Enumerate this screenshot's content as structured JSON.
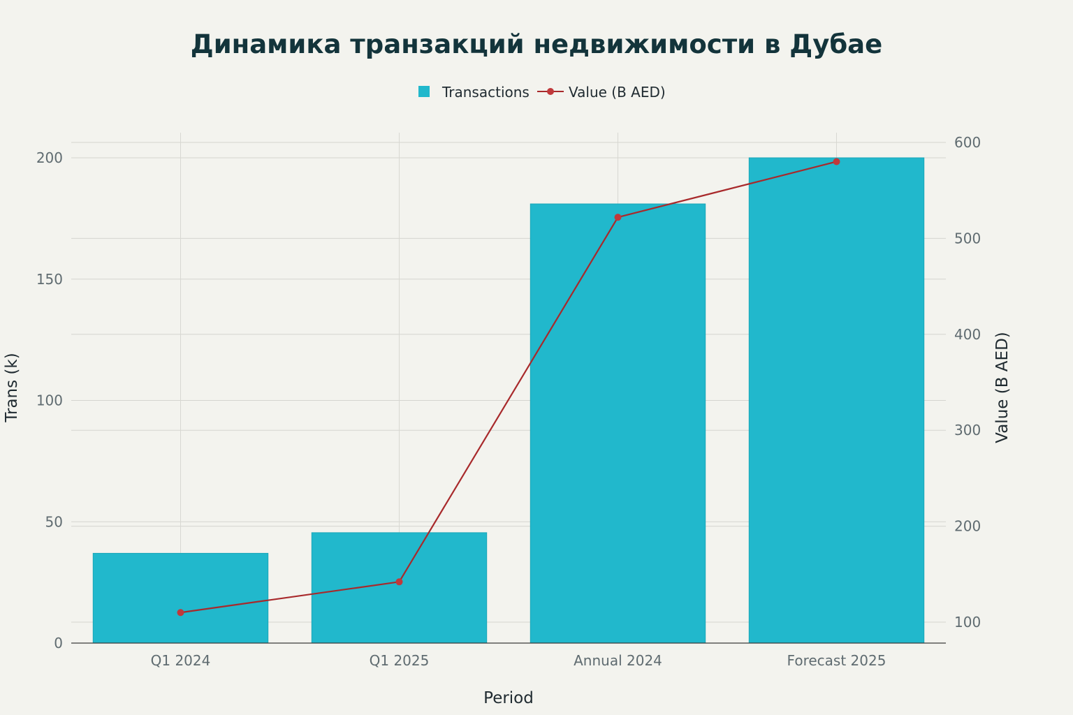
{
  "chart_data": {
    "type": "bar",
    "title": "Динамика транзакций недвижимости в Дубае",
    "xlabel": "Period",
    "ylabel": "Trans (k)",
    "y2label": "Value (B AED)",
    "categories": [
      "Q1 2024",
      "Q1 2025",
      "Annual 2024",
      "Forecast 2025"
    ],
    "ylim": [
      0,
      210
    ],
    "y2lim": [
      75,
      610
    ],
    "yticks": [
      0,
      50,
      100,
      150,
      200
    ],
    "y2ticks": [
      100,
      200,
      300,
      400,
      500,
      600
    ],
    "grid": true,
    "legend_position": "top-center",
    "series": [
      {
        "name": "Transactions",
        "type": "bar",
        "axis": "left",
        "color": "#21b8cc",
        "values": [
          37,
          45.5,
          181,
          200
        ]
      },
      {
        "name": "Value (B AED)",
        "type": "line",
        "axis": "right",
        "color": "#a8292b",
        "marker_color": "#c0393b",
        "values": [
          110,
          142,
          522,
          580
        ]
      }
    ]
  }
}
